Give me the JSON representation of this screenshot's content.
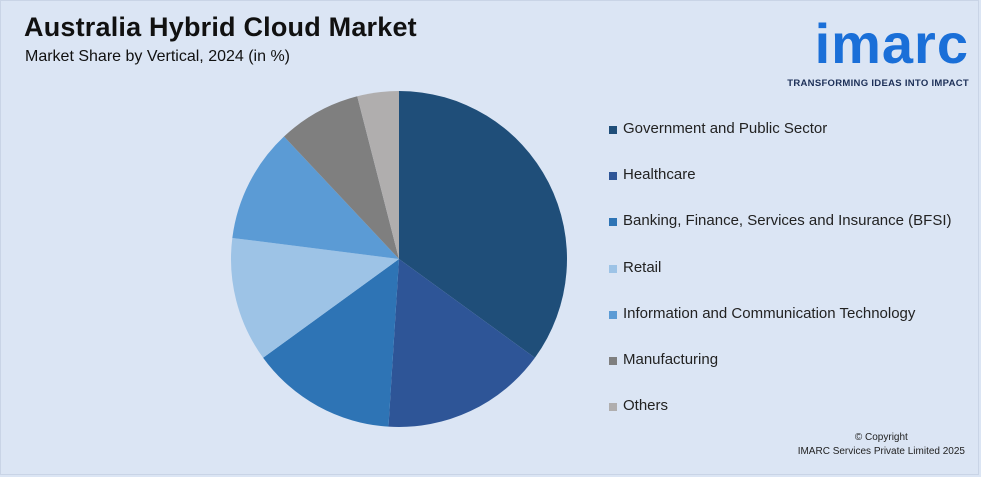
{
  "header": {
    "title": "Australia Hybrid Cloud Market",
    "subtitle": "Market Share by Vertical, 2024 (in %)"
  },
  "logo": {
    "word": "imarc",
    "tagline": "TRANSFORMING IDEAS INTO IMPACT",
    "color": "#1a6fd8"
  },
  "footer": {
    "line1": "© Copyright",
    "line2": "IMARC Services Private Limited 2025"
  },
  "chart_data": {
    "type": "pie",
    "title": "Australia Hybrid Cloud Market",
    "subtitle": "Market Share by Vertical, 2024 (in %)",
    "legend_position": "right",
    "slices": [
      {
        "label": "Government and Public Sector",
        "value": 35,
        "color": "#1f4e79"
      },
      {
        "label": "Healthcare",
        "value": 16,
        "color": "#2e5597"
      },
      {
        "label": "Banking, Finance, Services and Insurance (BFSI)",
        "value": 14,
        "color": "#2e74b5"
      },
      {
        "label": "Retail",
        "value": 12,
        "color": "#9dc3e6"
      },
      {
        "label": "Information and Communication Technology",
        "value": 11,
        "color": "#5b9bd5"
      },
      {
        "label": "Manufacturing",
        "value": 8,
        "color": "#7f7f7f"
      },
      {
        "label": "Others",
        "value": 4,
        "color": "#b0aeae"
      }
    ]
  }
}
